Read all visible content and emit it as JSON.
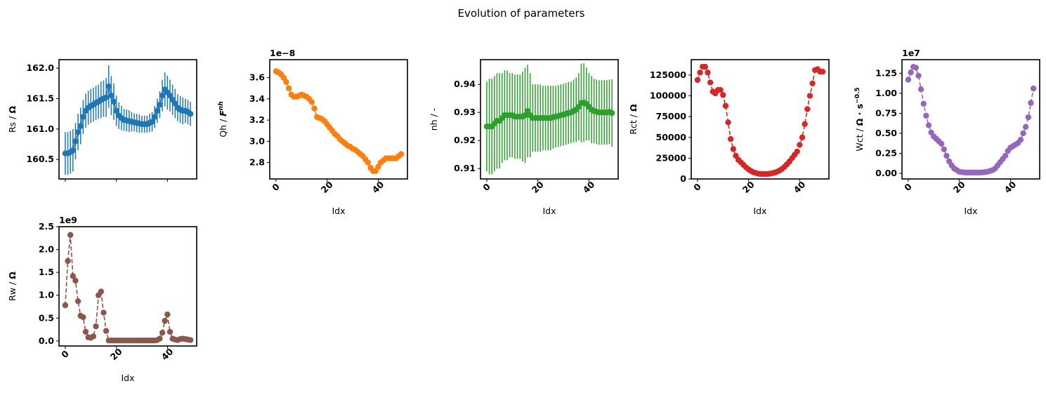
{
  "suptitle": "Evolution of parameters",
  "colors": {
    "Rs": "#1f77b4",
    "Qh": "#ff7f0e",
    "nh": "#2ca02c",
    "Rct": "#d62728",
    "Wct": "#9467bd",
    "Rw": "#8c564b"
  },
  "chart_data": [
    {
      "id": "Rs",
      "type": "scatter",
      "style": "errorbar",
      "xlabel": "",
      "ylabel_main": "Rs / ",
      "ylabel_unit": "Ω",
      "offset_label": "",
      "ylim": [
        160.18,
        162.14
      ],
      "xlim": [
        -2.45,
        51.45
      ],
      "yticks": [
        "160.5",
        "161.0",
        "161.5",
        "162.0"
      ],
      "yticks_values": [
        160.5,
        161.0,
        161.5,
        162.0
      ],
      "xticks": [
        "",
        "",
        "",
        ""
      ],
      "xticks_values": [
        0,
        20,
        40
      ],
      "x": [
        0,
        1,
        2,
        3,
        4,
        5,
        6,
        7,
        8,
        9,
        10,
        11,
        12,
        13,
        14,
        15,
        16,
        17,
        18,
        19,
        20,
        21,
        22,
        23,
        24,
        25,
        26,
        27,
        28,
        29,
        30,
        31,
        32,
        33,
        34,
        35,
        36,
        37,
        38,
        39,
        40,
        41,
        42,
        43,
        44,
        45,
        46,
        47,
        48,
        49
      ],
      "values": [
        160.6,
        160.6,
        160.62,
        160.65,
        160.8,
        160.95,
        161.05,
        161.2,
        161.3,
        161.35,
        161.38,
        161.4,
        161.43,
        161.45,
        161.48,
        161.5,
        161.52,
        161.7,
        161.55,
        161.45,
        161.3,
        161.22,
        161.18,
        161.15,
        161.14,
        161.13,
        161.12,
        161.11,
        161.1,
        161.09,
        161.08,
        161.08,
        161.08,
        161.1,
        161.12,
        161.2,
        161.3,
        161.4,
        161.55,
        161.65,
        161.6,
        161.55,
        161.48,
        161.42,
        161.35,
        161.32,
        161.3,
        161.3,
        161.28,
        161.25
      ],
      "errors": [
        0.35,
        0.35,
        0.35,
        0.35,
        0.3,
        0.3,
        0.3,
        0.28,
        0.28,
        0.28,
        0.28,
        0.28,
        0.28,
        0.28,
        0.3,
        0.3,
        0.32,
        0.35,
        0.32,
        0.3,
        0.25,
        0.22,
        0.2,
        0.18,
        0.18,
        0.18,
        0.16,
        0.15,
        0.15,
        0.15,
        0.14,
        0.14,
        0.14,
        0.15,
        0.16,
        0.18,
        0.2,
        0.22,
        0.26,
        0.28,
        0.28,
        0.26,
        0.25,
        0.24,
        0.22,
        0.22,
        0.22,
        0.2,
        0.2,
        0.2
      ]
    },
    {
      "id": "Qh",
      "type": "scatter",
      "style": "errorbar",
      "xlabel": "Idx",
      "ylabel_main": "Qh / ",
      "ylabel_unit": "F",
      "ylabel_sup": "nh",
      "offset_label": "1e−8",
      "ylim": [
        2.645,
        3.77
      ],
      "xlim": [
        -2.45,
        51.45
      ],
      "yticks": [
        "2.8",
        "3.0",
        "3.2",
        "3.4",
        "3.6"
      ],
      "yticks_values": [
        2.8,
        3.0,
        3.2,
        3.4,
        3.6
      ],
      "xticks": [
        "0",
        "20",
        "40"
      ],
      "xticks_values": [
        0,
        20,
        40
      ],
      "x": [
        0,
        1,
        2,
        3,
        4,
        5,
        6,
        7,
        8,
        9,
        10,
        11,
        12,
        13,
        14,
        15,
        16,
        17,
        18,
        19,
        20,
        21,
        22,
        23,
        24,
        25,
        26,
        27,
        28,
        29,
        30,
        31,
        32,
        33,
        34,
        35,
        36,
        37,
        38,
        39,
        40,
        41,
        42,
        43,
        44,
        45,
        46,
        47,
        48,
        49
      ],
      "values": [
        3.66,
        3.65,
        3.63,
        3.6,
        3.56,
        3.5,
        3.44,
        3.42,
        3.42,
        3.43,
        3.44,
        3.43,
        3.42,
        3.4,
        3.37,
        3.31,
        3.23,
        3.22,
        3.21,
        3.19,
        3.16,
        3.13,
        3.1,
        3.07,
        3.05,
        3.02,
        3.0,
        2.98,
        2.96,
        2.95,
        2.93,
        2.92,
        2.9,
        2.88,
        2.86,
        2.83,
        2.8,
        2.75,
        2.72,
        2.72,
        2.76,
        2.8,
        2.82,
        2.84,
        2.84,
        2.84,
        2.84,
        2.84,
        2.86,
        2.88
      ],
      "errors": [
        0.03,
        0.03,
        0.03,
        0.03,
        0.03,
        0.02,
        0.02,
        0.02,
        0.02,
        0.02,
        0.02,
        0.02,
        0.02,
        0.02,
        0.02,
        0.02,
        0.02,
        0.02,
        0.02,
        0.02,
        0.02,
        0.02,
        0.02,
        0.02,
        0.02,
        0.02,
        0.02,
        0.02,
        0.02,
        0.02,
        0.02,
        0.02,
        0.02,
        0.02,
        0.02,
        0.02,
        0.02,
        0.02,
        0.02,
        0.02,
        0.02,
        0.02,
        0.02,
        0.02,
        0.02,
        0.02,
        0.02,
        0.02,
        0.02,
        0.02
      ]
    },
    {
      "id": "nh",
      "type": "scatter",
      "style": "errorbar",
      "xlabel": "Idx",
      "ylabel_main": "nh / -",
      "ylabel_unit": "",
      "offset_label": "",
      "ylim": [
        0.9063,
        0.9488
      ],
      "xlim": [
        -2.45,
        51.45
      ],
      "yticks": [
        "0.91",
        "0.92",
        "0.93",
        "0.94"
      ],
      "yticks_values": [
        0.91,
        0.92,
        0.93,
        0.94
      ],
      "xticks": [
        "0",
        "20",
        "40"
      ],
      "xticks_values": [
        0,
        20,
        40
      ],
      "x": [
        0,
        1,
        2,
        3,
        4,
        5,
        6,
        7,
        8,
        9,
        10,
        11,
        12,
        13,
        14,
        15,
        16,
        17,
        18,
        19,
        20,
        21,
        22,
        23,
        24,
        25,
        26,
        27,
        28,
        29,
        30,
        31,
        32,
        33,
        34,
        35,
        36,
        37,
        38,
        39,
        40,
        41,
        42,
        43,
        44,
        45,
        46,
        47,
        48,
        49
      ],
      "values": [
        0.925,
        0.925,
        0.925,
        0.926,
        0.927,
        0.927,
        0.928,
        0.929,
        0.929,
        0.929,
        0.929,
        0.9285,
        0.9285,
        0.9285,
        0.9285,
        0.929,
        0.9305,
        0.929,
        0.928,
        0.928,
        0.928,
        0.928,
        0.928,
        0.928,
        0.928,
        0.928,
        0.9283,
        0.9285,
        0.9287,
        0.929,
        0.9292,
        0.9295,
        0.9298,
        0.93,
        0.9305,
        0.931,
        0.932,
        0.9333,
        0.9335,
        0.933,
        0.932,
        0.931,
        0.9305,
        0.9302,
        0.93,
        0.93,
        0.93,
        0.93,
        0.9302,
        0.9298
      ],
      "errors": [
        0.016,
        0.017,
        0.017,
        0.017,
        0.017,
        0.017,
        0.016,
        0.016,
        0.016,
        0.015,
        0.015,
        0.015,
        0.015,
        0.015,
        0.016,
        0.017,
        0.0165,
        0.015,
        0.012,
        0.012,
        0.012,
        0.012,
        0.0115,
        0.0115,
        0.0115,
        0.0115,
        0.0112,
        0.011,
        0.011,
        0.011,
        0.011,
        0.011,
        0.011,
        0.011,
        0.0112,
        0.0115,
        0.012,
        0.014,
        0.014,
        0.013,
        0.012,
        0.012,
        0.0115,
        0.0115,
        0.0115,
        0.0115,
        0.0115,
        0.0115,
        0.0115,
        0.012
      ]
    },
    {
      "id": "Rct",
      "type": "line",
      "style": "dashed-markers",
      "xlabel": "Idx",
      "ylabel_main": "Rct / ",
      "ylabel_unit": "Ω",
      "offset_label": "",
      "ylim": [
        0,
        143500
      ],
      "xlim": [
        -2.45,
        51.45
      ],
      "yticks": [
        "0",
        "25000",
        "50000",
        "75000",
        "100000",
        "125000"
      ],
      "yticks_values": [
        0,
        25000,
        50000,
        75000,
        100000,
        125000
      ],
      "xticks": [
        "0",
        "20",
        "40"
      ],
      "xticks_values": [
        0,
        20,
        40
      ],
      "x": [
        0,
        1,
        2,
        3,
        4,
        5,
        6,
        7,
        8,
        9,
        10,
        11,
        12,
        13,
        14,
        15,
        16,
        17,
        18,
        19,
        20,
        21,
        22,
        23,
        24,
        25,
        26,
        27,
        28,
        29,
        30,
        31,
        32,
        33,
        34,
        35,
        36,
        37,
        38,
        39,
        40,
        41,
        42,
        43,
        44,
        45,
        46,
        47,
        48,
        49
      ],
      "values": [
        119000,
        128000,
        135000,
        135000,
        128000,
        116000,
        105000,
        103000,
        107000,
        107000,
        101000,
        88000,
        68000,
        48000,
        36000,
        28000,
        23000,
        20000,
        17000,
        14000,
        11500,
        9500,
        8000,
        7000,
        6200,
        6000,
        6000,
        6000,
        6200,
        6800,
        7500,
        8500,
        10000,
        12000,
        14500,
        17500,
        21000,
        25000,
        29000,
        33000,
        41000,
        50000,
        66000,
        84000,
        100000,
        115000,
        131000,
        132000,
        129000,
        129000
      ]
    },
    {
      "id": "Wct",
      "type": "line",
      "style": "dashed-markers",
      "xlabel": "Idx",
      "ylabel_main": "Wct / ",
      "ylabel_unit": "Ω · s",
      "ylabel_sup": "−0.5",
      "offset_label": "1e7",
      "ylim": [
        -0.07,
        1.42
      ],
      "xlim": [
        -2.45,
        51.45
      ],
      "yticks": [
        "0.00",
        "0.25",
        "0.50",
        "0.75",
        "1.00",
        "1.25"
      ],
      "yticks_values": [
        0,
        0.25,
        0.5,
        0.75,
        1.0,
        1.25
      ],
      "xticks": [
        "0",
        "20",
        "40"
      ],
      "xticks_values": [
        0,
        20,
        40
      ],
      "x": [
        0,
        1,
        2,
        3,
        4,
        5,
        6,
        7,
        8,
        9,
        10,
        11,
        12,
        13,
        14,
        15,
        16,
        17,
        18,
        19,
        20,
        21,
        22,
        23,
        24,
        25,
        26,
        27,
        28,
        29,
        30,
        31,
        32,
        33,
        34,
        35,
        36,
        37,
        38,
        39,
        40,
        41,
        42,
        43,
        44,
        45,
        46,
        47,
        48,
        49
      ],
      "values": [
        1.17,
        1.26,
        1.33,
        1.32,
        1.22,
        1.05,
        0.87,
        0.72,
        0.6,
        0.51,
        0.46,
        0.43,
        0.4,
        0.37,
        0.3,
        0.22,
        0.15,
        0.1,
        0.06,
        0.04,
        0.02,
        0.015,
        0.012,
        0.01,
        0.01,
        0.01,
        0.01,
        0.01,
        0.01,
        0.012,
        0.015,
        0.02,
        0.03,
        0.04,
        0.06,
        0.1,
        0.14,
        0.18,
        0.22,
        0.28,
        0.32,
        0.34,
        0.36,
        0.38,
        0.42,
        0.5,
        0.58,
        0.7,
        0.88,
        1.06
      ]
    },
    {
      "id": "Rw",
      "type": "line",
      "style": "dashed-markers",
      "xlabel": "Idx",
      "ylabel_main": "Rw / ",
      "ylabel_unit": "Ω",
      "offset_label": "1e9",
      "ylim": [
        -0.11,
        2.5
      ],
      "xlim": [
        -2.45,
        51.45
      ],
      "yticks": [
        "0.0",
        "0.5",
        "1.0",
        "1.5",
        "2.0",
        "2.5"
      ],
      "yticks_values": [
        0,
        0.5,
        1.0,
        1.5,
        2.0,
        2.5
      ],
      "xticks": [
        "0",
        "20",
        "40"
      ],
      "xticks_values": [
        0,
        20,
        40
      ],
      "x": [
        0,
        1,
        2,
        3,
        4,
        5,
        6,
        7,
        8,
        9,
        10,
        11,
        12,
        13,
        14,
        15,
        16,
        17,
        18,
        19,
        20,
        21,
        22,
        23,
        24,
        25,
        26,
        27,
        28,
        29,
        30,
        31,
        32,
        33,
        34,
        35,
        36,
        37,
        38,
        39,
        40,
        41,
        42,
        43,
        44,
        45,
        46,
        47,
        48,
        49
      ],
      "values": [
        0.78,
        1.75,
        2.32,
        1.42,
        1.32,
        0.87,
        0.55,
        0.52,
        0.2,
        0.08,
        0.07,
        0.1,
        0.32,
        1.0,
        1.08,
        0.62,
        0.22,
        0.01,
        0.01,
        0.01,
        0.01,
        0.01,
        0.01,
        0.01,
        0.01,
        0.01,
        0.01,
        0.01,
        0.01,
        0.01,
        0.01,
        0.01,
        0.01,
        0.01,
        0.01,
        0.01,
        0.02,
        0.05,
        0.18,
        0.44,
        0.58,
        0.2,
        0.05,
        0.03,
        0.02,
        0.04,
        0.05,
        0.04,
        0.03,
        0.02
      ]
    }
  ]
}
